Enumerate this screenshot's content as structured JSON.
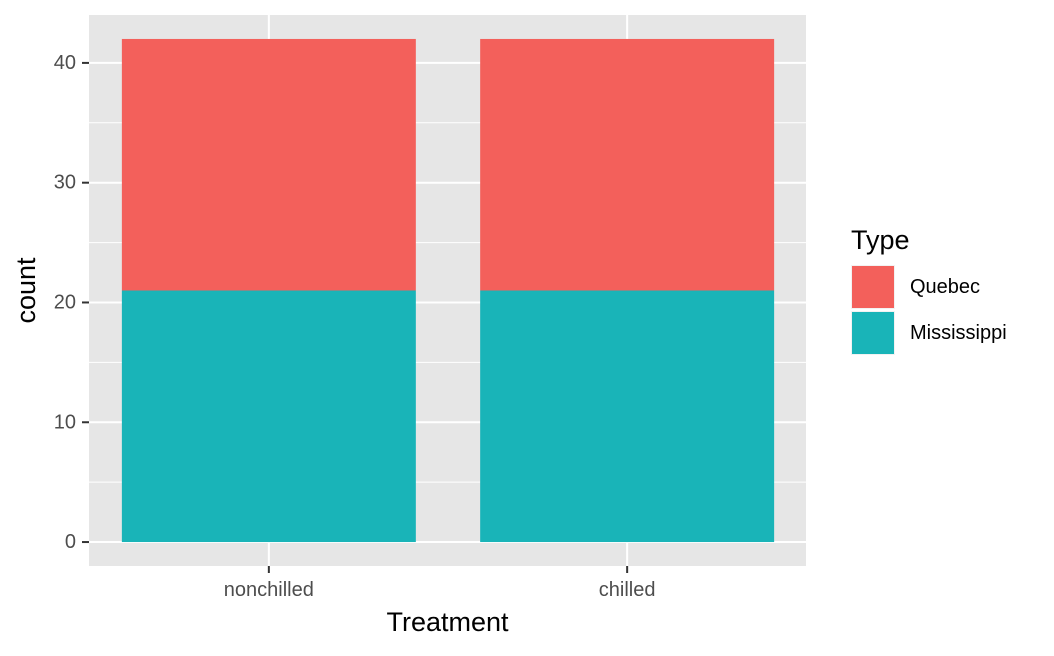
{
  "chart_data": {
    "type": "bar",
    "stacked": true,
    "title": "",
    "xlabel": "Treatment",
    "ylabel": "count",
    "categories": [
      "nonchilled",
      "chilled"
    ],
    "series": [
      {
        "name": "Mississippi",
        "values": [
          21,
          21
        ],
        "color": "#19B4B8"
      },
      {
        "name": "Quebec",
        "values": [
          21,
          21
        ],
        "color": "#F3605B"
      }
    ],
    "ylim": [
      -2,
      44
    ],
    "yticks": [
      0,
      10,
      20,
      30,
      40
    ],
    "ytick_labels": [
      "0",
      "10",
      "20",
      "30",
      "40"
    ],
    "grid": true,
    "legend": {
      "title": "Type",
      "placement": "right",
      "entries": [
        {
          "label": "Quebec",
          "color": "#F3605B"
        },
        {
          "label": "Mississippi",
          "color": "#19B4B8"
        }
      ]
    },
    "panel_background": "#E6E6E6",
    "grid_color": "#FFFFFF"
  }
}
